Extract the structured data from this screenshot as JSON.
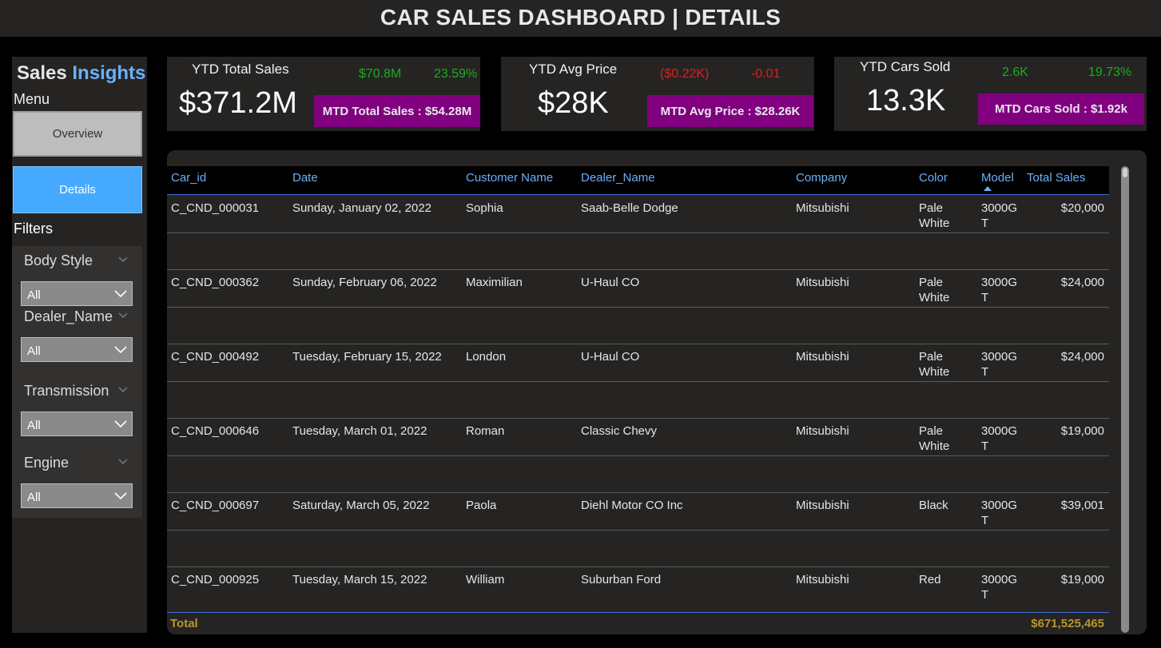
{
  "header": {
    "title": "CAR SALES DASHBOARD | DETAILS"
  },
  "sidebar": {
    "brand_word1": "Sales",
    "brand_word2": "Insights",
    "menu_label": "Menu",
    "nav": {
      "overview": "Overview",
      "details": "Details"
    },
    "filters_label": "Filters",
    "filters": [
      {
        "label": "Body Style",
        "value": "All"
      },
      {
        "label": "Dealer_Name",
        "value": "All"
      },
      {
        "label": "Transmission",
        "value": "All"
      },
      {
        "label": "Engine",
        "value": "All"
      }
    ]
  },
  "kpis": [
    {
      "title": "YTD Total Sales",
      "value": "$371.2M",
      "delta_abs": "$70.8M",
      "delta_pct": "23.59%",
      "trend": "up",
      "mtd": "MTD Total Sales : $54.28M"
    },
    {
      "title": "YTD Avg Price",
      "value": "$28K",
      "delta_abs": "($0.22K)",
      "delta_pct": "-0.01",
      "trend": "down",
      "mtd": "MTD Avg Price : $28.26K"
    },
    {
      "title": "YTD Cars Sold",
      "value": "13.3K",
      "delta_abs": "2.6K",
      "delta_pct": "19.73%",
      "trend": "up",
      "mtd": "MTD Cars Sold : $1.92k"
    }
  ],
  "colors": {
    "up": "#1aae1a",
    "down": "#e31d1d",
    "accent": "#6ab0f8",
    "mtd_bg": "#800080",
    "total": "#b8962e"
  },
  "table": {
    "columns": [
      "Car_id",
      "Date",
      "Customer Name",
      "Dealer_Name",
      "Company",
      "Color",
      "Model",
      "Total Sales"
    ],
    "sorted_column": "Model",
    "rows": [
      {
        "car_id": "C_CND_000031",
        "date": "Sunday, January 02, 2022",
        "customer": "Sophia",
        "dealer": "Saab-Belle Dodge",
        "company": "Mitsubishi",
        "color": "Pale White",
        "model": "3000GT",
        "sales": "$20,000"
      },
      {
        "car_id": "C_CND_000362",
        "date": "Sunday, February 06, 2022",
        "customer": "Maximilian",
        "dealer": "U-Haul CO",
        "company": "Mitsubishi",
        "color": "Pale White",
        "model": "3000GT",
        "sales": "$24,000"
      },
      {
        "car_id": "C_CND_000492",
        "date": "Tuesday, February 15, 2022",
        "customer": "London",
        "dealer": "U-Haul CO",
        "company": "Mitsubishi",
        "color": "Pale White",
        "model": "3000GT",
        "sales": "$24,000"
      },
      {
        "car_id": "C_CND_000646",
        "date": "Tuesday, March 01, 2022",
        "customer": "Roman",
        "dealer": "Classic Chevy",
        "company": "Mitsubishi",
        "color": "Pale White",
        "model": "3000GT",
        "sales": "$19,000"
      },
      {
        "car_id": "C_CND_000697",
        "date": "Saturday, March 05, 2022",
        "customer": "Paola",
        "dealer": "Diehl Motor CO Inc",
        "company": "Mitsubishi",
        "color": "Black",
        "model": "3000GT",
        "sales": "$39,001"
      },
      {
        "car_id": "C_CND_000925",
        "date": "Tuesday, March 15, 2022",
        "customer": "William",
        "dealer": "Suburban Ford",
        "company": "Mitsubishi",
        "color": "Red",
        "model": "3000GT",
        "sales": "$19,000"
      }
    ],
    "total_label": "Total",
    "total_value": "$671,525,465"
  }
}
